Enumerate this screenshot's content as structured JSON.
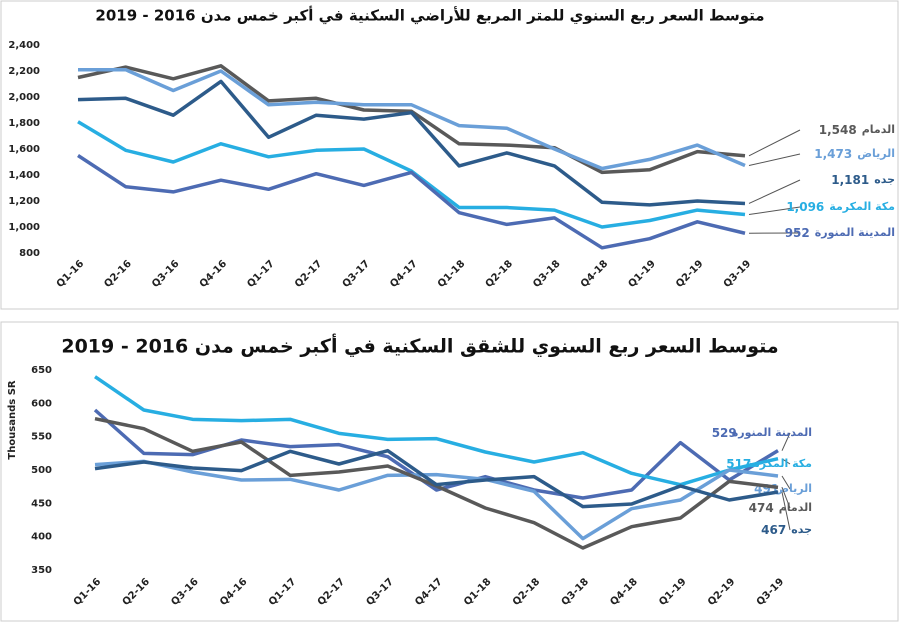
{
  "chart_data": [
    {
      "type": "line",
      "title": "متوسط السعر ربع السنوي للمتر المربع للأراضي السكنية في أكبر خمس مدن 2016 - 2019",
      "categories": [
        "Q1-16",
        "Q2-16",
        "Q3-16",
        "Q4-16",
        "Q1-17",
        "Q2-17",
        "Q3-17",
        "Q4-17",
        "Q1-18",
        "Q2-18",
        "Q3-18",
        "Q4-18",
        "Q1-19",
        "Q2-19",
        "Q3-19"
      ],
      "ylim": [
        800,
        2400
      ],
      "yticks": [
        800,
        {
          "value": 1000,
          "label": "1,000"
        },
        {
          "value": 1200,
          "label": "1,200"
        },
        {
          "value": 1400,
          "label": "1,400"
        },
        {
          "value": 1600,
          "label": "1,600"
        },
        {
          "value": 1800,
          "label": "1,800"
        },
        {
          "value": 2000,
          "label": "2,000"
        },
        {
          "value": 2200,
          "label": "2,200"
        },
        {
          "value": 2400,
          "label": "2,400"
        }
      ],
      "grid": false,
      "series": [
        {
          "name": "الدمام",
          "color": "#595959",
          "values": [
            2150,
            2230,
            2140,
            2240,
            1970,
            1990,
            1900,
            1890,
            1640,
            1630,
            1610,
            1420,
            1440,
            1580,
            1548
          ],
          "value_labels": [
            null,
            null,
            null,
            null,
            null,
            null,
            null,
            null,
            null,
            null,
            null,
            null,
            null,
            null,
            "1,548"
          ]
        },
        {
          "name": "الرياض",
          "color": "#6a9fd8",
          "values": [
            2210,
            2210,
            2050,
            2200,
            1940,
            1960,
            1940,
            1940,
            1780,
            1760,
            1600,
            1450,
            1520,
            1630,
            1473
          ],
          "value_labels": [
            null,
            null,
            null,
            null,
            null,
            null,
            null,
            null,
            null,
            null,
            null,
            null,
            null,
            null,
            "1,473"
          ]
        },
        {
          "name": "جده",
          "color": "#2d5b8a",
          "values": [
            1980,
            1990,
            1860,
            2120,
            1690,
            1860,
            1830,
            1880,
            1470,
            1570,
            1470,
            1190,
            1170,
            1200,
            1181
          ],
          "value_labels": [
            null,
            null,
            null,
            null,
            null,
            null,
            null,
            null,
            null,
            null,
            null,
            null,
            null,
            null,
            "1,181"
          ]
        },
        {
          "name": "مكة المكرمة",
          "color": "#27aee2",
          "values": [
            1810,
            1590,
            1500,
            1640,
            1540,
            1590,
            1600,
            1430,
            1150,
            1150,
            1130,
            1000,
            1050,
            1130,
            1096
          ],
          "value_labels": [
            null,
            null,
            null,
            null,
            null,
            null,
            null,
            null,
            null,
            null,
            null,
            null,
            null,
            null,
            "1,096"
          ]
        },
        {
          "name": "المدينة المنورة",
          "color": "#4d6bb3",
          "values": [
            1550,
            1310,
            1270,
            1360,
            1290,
            1410,
            1320,
            1420,
            1110,
            1020,
            1070,
            840,
            910,
            1040,
            952
          ],
          "value_labels": [
            null,
            null,
            null,
            null,
            null,
            null,
            null,
            null,
            null,
            null,
            null,
            null,
            null,
            null,
            "952"
          ]
        }
      ]
    },
    {
      "type": "line",
      "title": "متوسط السعر ربع السنوي للشقق السكنية في أكبر خمس مدن 2016 - 2019",
      "ylabel": "Thousands SR",
      "categories": [
        "Q1-16",
        "Q2-16",
        "Q3-16",
        "Q4-16",
        "Q1-17",
        "Q2-17",
        "Q3-17",
        "Q4-17",
        "Q1-18",
        "Q2-18",
        "Q3-18",
        "Q4-18",
        "Q1-19",
        "Q2-19",
        "Q3-19"
      ],
      "ylim": [
        350,
        650
      ],
      "yticks": [
        350,
        400,
        450,
        500,
        550,
        600,
        650
      ],
      "grid": false,
      "series": [
        {
          "name": "المدينة المنورة",
          "color": "#4d6bb3",
          "values": [
            590,
            525,
            523,
            545,
            535,
            538,
            520,
            470,
            490,
            470,
            458,
            470,
            541,
            485,
            529
          ]
        },
        {
          "name": "مكة المكرمة",
          "color": "#27aee2",
          "values": [
            640,
            590,
            576,
            574,
            576,
            555,
            546,
            547,
            527,
            512,
            526,
            495,
            478,
            500,
            517
          ]
        },
        {
          "name": "الرياض",
          "color": "#6a9fd8",
          "values": [
            508,
            513,
            497,
            485,
            486,
            470,
            492,
            493,
            486,
            468,
            397,
            442,
            455,
            500,
            491
          ]
        },
        {
          "name": "الدمام",
          "color": "#595959",
          "values": [
            577,
            562,
            528,
            542,
            492,
            497,
            506,
            476,
            443,
            421,
            383,
            415,
            428,
            483,
            474
          ]
        },
        {
          "name": "جده",
          "color": "#2d5b8a",
          "values": [
            502,
            512,
            503,
            499,
            528,
            509,
            529,
            478,
            485,
            490,
            445,
            449,
            476,
            455,
            467
          ]
        }
      ]
    }
  ]
}
